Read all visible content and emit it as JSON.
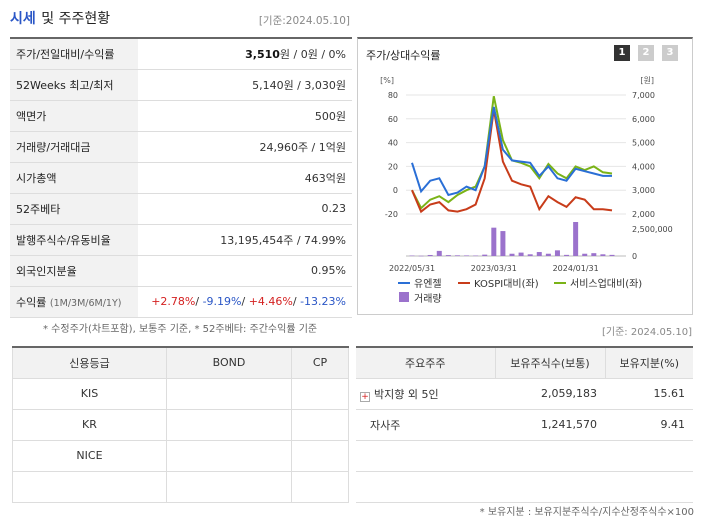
{
  "header": {
    "title": "시세",
    "title2": "및 주주현황",
    "date": "[기준:2024.05.10]"
  },
  "quote": {
    "rows": [
      {
        "label": "주가/전일대비/수익률",
        "value_main": "3,510",
        "value_rest": "원 / 0원 / 0%"
      },
      {
        "label": "52Weeks 최고/최저",
        "value": "5,140원 / 3,030원"
      },
      {
        "label": "액면가",
        "value": "500원"
      },
      {
        "label": "거래량/거래대금",
        "value": "24,960주 / 1억원"
      },
      {
        "label": "시가총액",
        "value": "463억원"
      },
      {
        "label": "52주베타",
        "value": "0.23"
      },
      {
        "label": "발행주식수/유동비율",
        "value": "13,195,454주 / 74.99%"
      },
      {
        "label": "외국인지분율",
        "value": "0.95%"
      }
    ],
    "returns": {
      "label": "수익률",
      "period": "(1M/3M/6M/1Y)",
      "r1": "+2.78%",
      "r2": "-9.19%",
      "r3": "+4.46%",
      "r4": "-13.23%"
    }
  },
  "footnote1": "* 수정주가(차트포함), 보통주 기준, * 52주베타: 주간수익률 기준",
  "chart": {
    "title": "주가/상대수익률",
    "pages": [
      "1",
      "2",
      "3"
    ],
    "left_unit": "[%]",
    "right_unit": "[원]",
    "legend": {
      "s1": "유엔젤",
      "s2": "KOSPI대비(좌)",
      "s3": "서비스업대비(좌)",
      "s4": "거래량"
    }
  },
  "chart_data": {
    "type": "line",
    "x_ticks": [
      "2022/05/31",
      "2023/03/31",
      "2024/01/31"
    ],
    "left_axis": {
      "ticks": [
        "80",
        "60",
        "40",
        "20",
        "0",
        "-20"
      ],
      "ylim": [
        -20,
        80
      ]
    },
    "right_axis": {
      "ticks": [
        "7,000",
        "6,000",
        "5,000",
        "4,000",
        "3,000",
        "2,000"
      ],
      "ylim": [
        2000,
        7000
      ]
    },
    "volume_axis": {
      "ticks": [
        "2,500,000",
        "0"
      ]
    },
    "series": [
      {
        "name": "유엔젤",
        "color": "#2a6fd6",
        "values": [
          23,
          -1,
          8,
          10,
          -4,
          -2,
          3,
          0,
          20,
          70,
          34,
          25,
          24,
          23,
          12,
          20,
          10,
          8,
          18,
          16,
          14,
          12,
          12
        ]
      },
      {
        "name": "KOSPI대비(좌)",
        "color": "#c83c1a",
        "values": [
          0,
          -18,
          -12,
          -10,
          -17,
          -18,
          -16,
          -12,
          10,
          68,
          24,
          8,
          5,
          3,
          -16,
          -5,
          -10,
          -14,
          -6,
          -8,
          -16,
          -16,
          -17
        ]
      },
      {
        "name": "서비스업대비(좌)",
        "color": "#7ab317",
        "values": [
          0,
          -15,
          -8,
          -5,
          -10,
          -4,
          0,
          3,
          20,
          79,
          42,
          25,
          23,
          20,
          10,
          22,
          14,
          10,
          20,
          17,
          20,
          15,
          14
        ]
      },
      {
        "name": "거래량",
        "color": "#9b72cc",
        "values": [
          40000,
          20000,
          90000,
          450000,
          80000,
          60000,
          50000,
          40000,
          120000,
          2500000,
          2200000,
          200000,
          300000,
          150000,
          350000,
          200000,
          500000,
          100000,
          3000000,
          200000,
          250000,
          150000,
          100000
        ]
      }
    ]
  },
  "date2": "[기준: 2024.05.10]",
  "credit": {
    "headers": [
      "신용등급",
      "BOND",
      "CP"
    ],
    "rows": [
      [
        "KIS",
        "",
        ""
      ],
      [
        "KR",
        "",
        ""
      ],
      [
        "NICE",
        "",
        ""
      ],
      [
        "",
        "",
        ""
      ]
    ]
  },
  "holders": {
    "headers": [
      "주요주주",
      "보유주식수(보통)",
      "보유지분(%)"
    ],
    "rows": [
      {
        "name": "박지향 외 5인",
        "shares": "2,059,183",
        "pct": "15.61"
      },
      {
        "name": "자사주",
        "shares": "1,241,570",
        "pct": "9.41"
      }
    ]
  },
  "footnote2": "* 보유지분 : 보유지분주식수/지수산정주식수×100"
}
